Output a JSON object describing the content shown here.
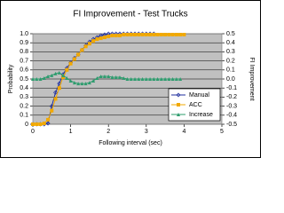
{
  "chart_data": {
    "type": "line",
    "title": "FI Improvement - Test Trucks",
    "x_label": "Following interval (sec)",
    "y_label": "Probability",
    "y2_label": "FI Improvement",
    "x": [
      0,
      0.1,
      0.2,
      0.3,
      0.4,
      0.5,
      0.6,
      0.7,
      0.8,
      0.9,
      1.0,
      1.1,
      1.2,
      1.3,
      1.4,
      1.5,
      1.6,
      1.7,
      1.8,
      1.9,
      2.0,
      2.1,
      2.2,
      2.3,
      2.4,
      2.5,
      2.6,
      2.7,
      2.8,
      2.9,
      3.0,
      3.1,
      3.2,
      3.3,
      3.4,
      3.5,
      3.6,
      3.7,
      3.8,
      3.9,
      4.0
    ],
    "series": [
      {
        "name": "Manual",
        "color": "#1f2f9e",
        "marker": "diamond",
        "values": [
          0,
          0,
          0,
          0,
          0.01,
          0.2,
          0.35,
          0.45,
          0.55,
          0.62,
          0.68,
          0.73,
          0.77,
          0.82,
          0.87,
          0.91,
          0.94,
          0.96,
          0.98,
          0.99,
          1.0,
          1.0,
          1.0,
          1.0,
          1.0,
          1.0,
          1.0,
          1.0,
          1.0,
          1.0,
          1.0,
          1.0,
          1.0,
          null,
          null,
          null,
          null,
          null,
          null,
          null,
          null
        ]
      },
      {
        "name": "ACC",
        "color": "#f2a900",
        "marker": "square",
        "values": [
          0,
          0,
          0,
          0.01,
          0.05,
          0.15,
          0.28,
          0.4,
          0.52,
          0.6,
          0.67,
          0.72,
          0.77,
          0.82,
          0.86,
          0.89,
          0.92,
          0.94,
          0.95,
          0.96,
          0.97,
          0.98,
          0.98,
          0.98,
          0.99,
          0.99,
          0.99,
          0.99,
          0.99,
          0.99,
          0.99,
          0.99,
          0.99,
          0.99,
          0.99,
          0.99,
          0.99,
          0.99,
          0.99,
          0.99,
          0.99
        ]
      },
      {
        "name": "Increase",
        "color": "#2e9c6e",
        "marker": "triangle",
        "axis": "y2",
        "values": [
          0,
          0,
          0,
          0.01,
          0.03,
          0.04,
          0.06,
          0.07,
          0.04,
          0.01,
          -0.02,
          -0.04,
          -0.05,
          -0.05,
          -0.05,
          -0.04,
          -0.02,
          0.01,
          0.03,
          0.03,
          0.03,
          0.02,
          0.02,
          0.02,
          0.01,
          0,
          0,
          0,
          0,
          0,
          0,
          0,
          0,
          0,
          0,
          0,
          0,
          0,
          0,
          0,
          null
        ]
      }
    ],
    "xlim": [
      0,
      5
    ],
    "xticks": [
      0,
      1,
      2,
      3,
      4,
      5
    ],
    "ylim": [
      0,
      1
    ],
    "yticks": [
      0,
      0.1,
      0.2,
      0.3,
      0.4,
      0.5,
      0.6,
      0.7,
      0.8,
      0.9,
      {
        "value": 1,
        "label": "1.0"
      }
    ],
    "y2lim": [
      -0.5,
      0.5
    ],
    "y2ticks": [
      -0.5,
      -0.4,
      -0.3,
      -0.2,
      -0.1,
      {
        "value": 0,
        "label": "0.0"
      },
      0.1,
      0.2,
      0.3,
      0.4,
      0.5
    ],
    "grid": true,
    "legend": "lower right",
    "plot_background": "#c0c0c0"
  }
}
